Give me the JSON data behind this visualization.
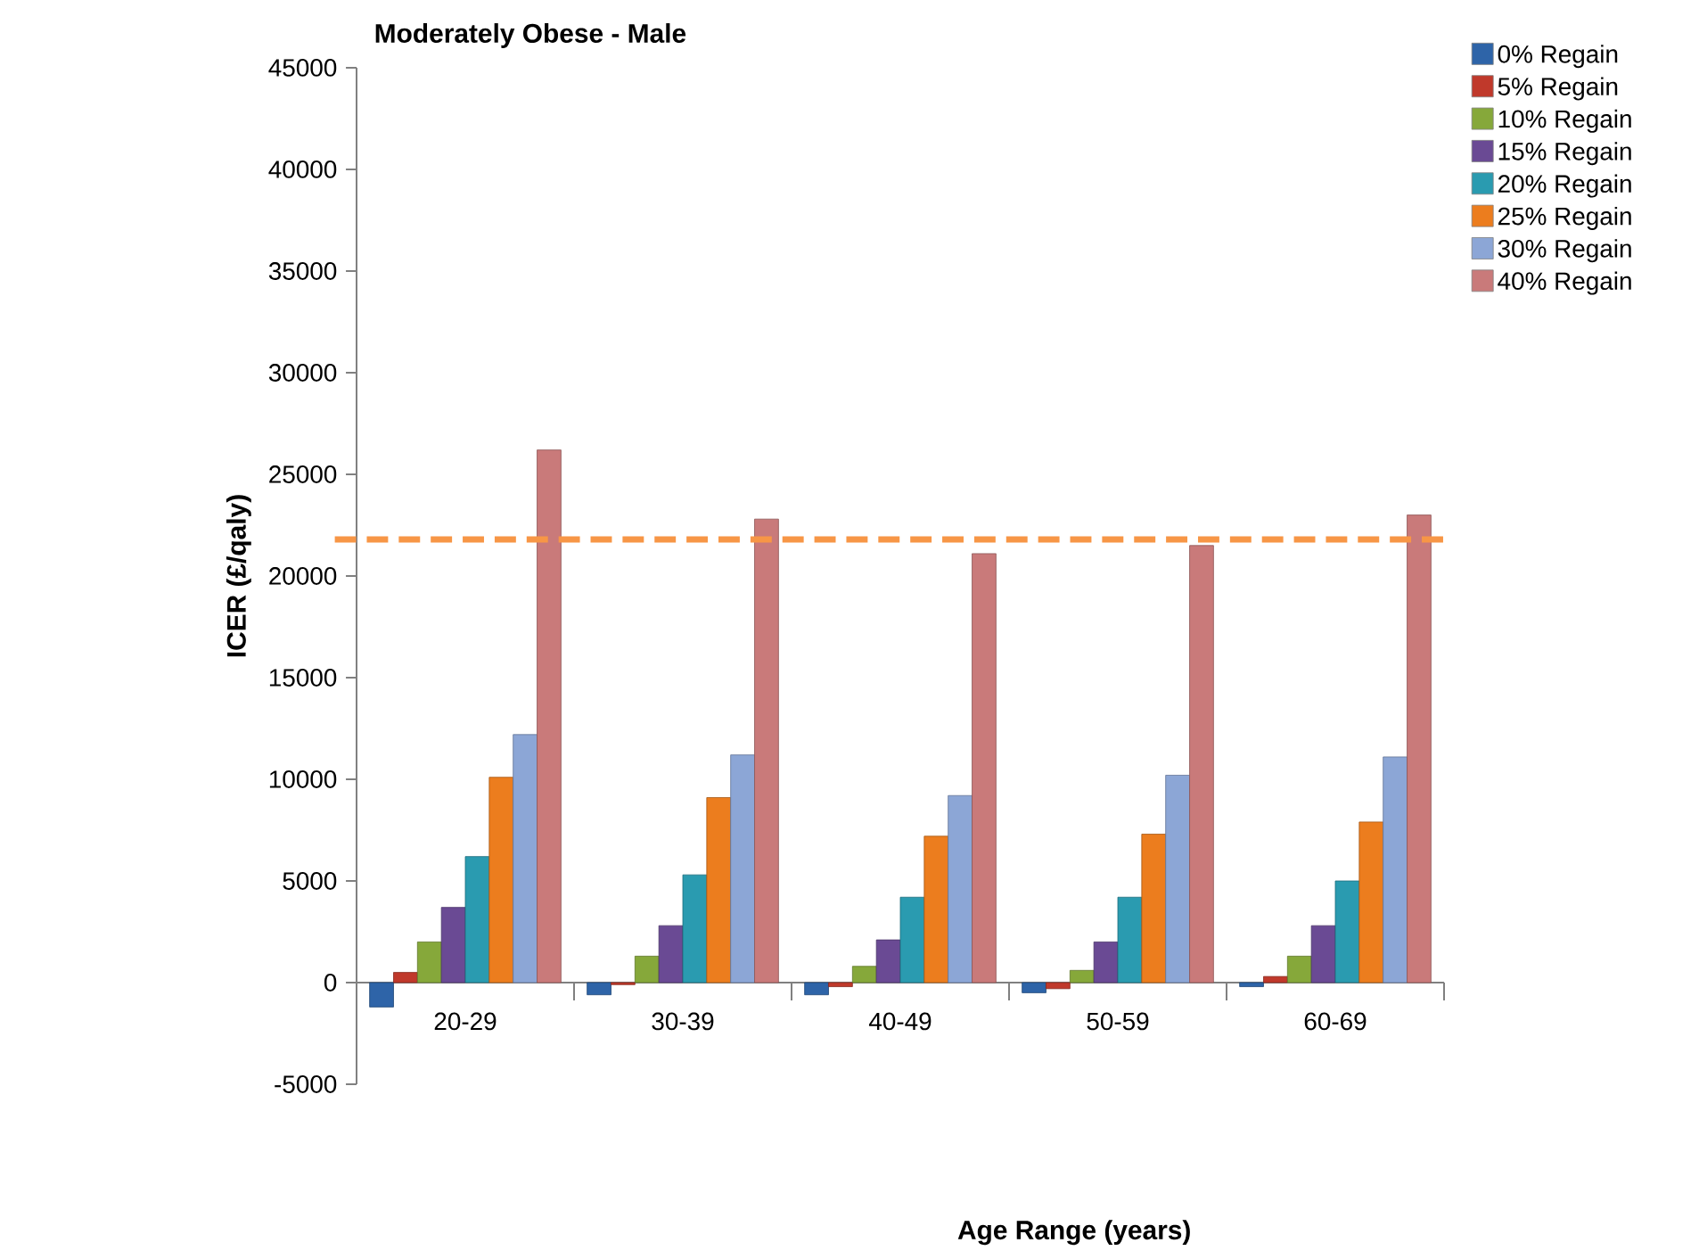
{
  "chart_data": {
    "type": "bar",
    "title": "Moderately Obese - Male",
    "xlabel": "Age Range (years)",
    "ylabel": "ICER (£/qaly)",
    "categories": [
      "20-29",
      "30-39",
      "40-49",
      "50-59",
      "60-69"
    ],
    "series": [
      {
        "name": "0% Regain",
        "color": "#2e64a8",
        "values": [
          -1200,
          -600,
          -600,
          -500,
          -200
        ]
      },
      {
        "name": "5% Regain",
        "color": "#c0392b",
        "values": [
          500,
          -100,
          -200,
          -300,
          300
        ]
      },
      {
        "name": "10% Regain",
        "color": "#86a83a",
        "values": [
          2000,
          1300,
          800,
          600,
          1300
        ]
      },
      {
        "name": "15% Regain",
        "color": "#6a4a94",
        "values": [
          3700,
          2800,
          2100,
          2000,
          2800
        ]
      },
      {
        "name": "20% Regain",
        "color": "#2a9bb0",
        "values": [
          6200,
          5300,
          4200,
          4200,
          5000
        ]
      },
      {
        "name": "25% Regain",
        "color": "#ec7d1e",
        "values": [
          10100,
          9100,
          7200,
          7300,
          7900
        ]
      },
      {
        "name": "30% Regain",
        "color": "#8ca6d6",
        "values": [
          12200,
          11200,
          9200,
          10200,
          11100
        ]
      },
      {
        "name": "40% Regain",
        "color": "#c97a7a",
        "values": [
          26200,
          22800,
          21100,
          21500,
          23000
        ]
      }
    ],
    "ylim": [
      -5000,
      45000
    ],
    "yticks": [
      -5000,
      0,
      5000,
      10000,
      15000,
      20000,
      25000,
      30000,
      35000,
      40000,
      45000
    ],
    "ref_lines": [
      {
        "axis": "y",
        "value": 21800,
        "color": "#f79646",
        "line_style": "dashed"
      }
    ],
    "legend": "top right",
    "grid": false
  }
}
